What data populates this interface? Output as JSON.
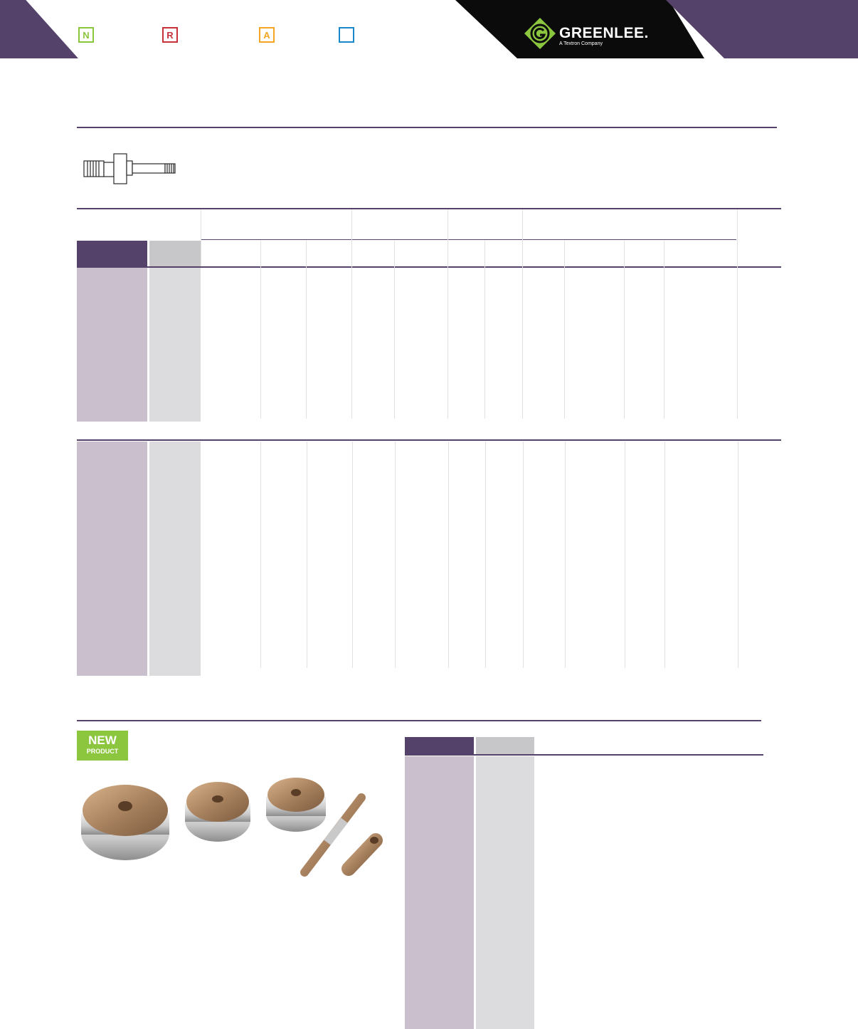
{
  "header": {
    "badges": [
      {
        "letter": "N",
        "color": "#8cc63f"
      },
      {
        "letter": "R",
        "color": "#c8313a"
      },
      {
        "letter": "A",
        "color": "#f5a623"
      },
      {
        "letter": "",
        "color": "#1a87c9"
      }
    ],
    "logo": {
      "name": "GREENLEE.",
      "tagline": "A Textron Company",
      "icon": "greenlee-g-icon"
    },
    "colors": {
      "brand_purple": "#54426b",
      "logo_green": "#8cc63f"
    }
  },
  "new_product": {
    "line1": "NEW",
    "line2": "PRODUCT"
  }
}
